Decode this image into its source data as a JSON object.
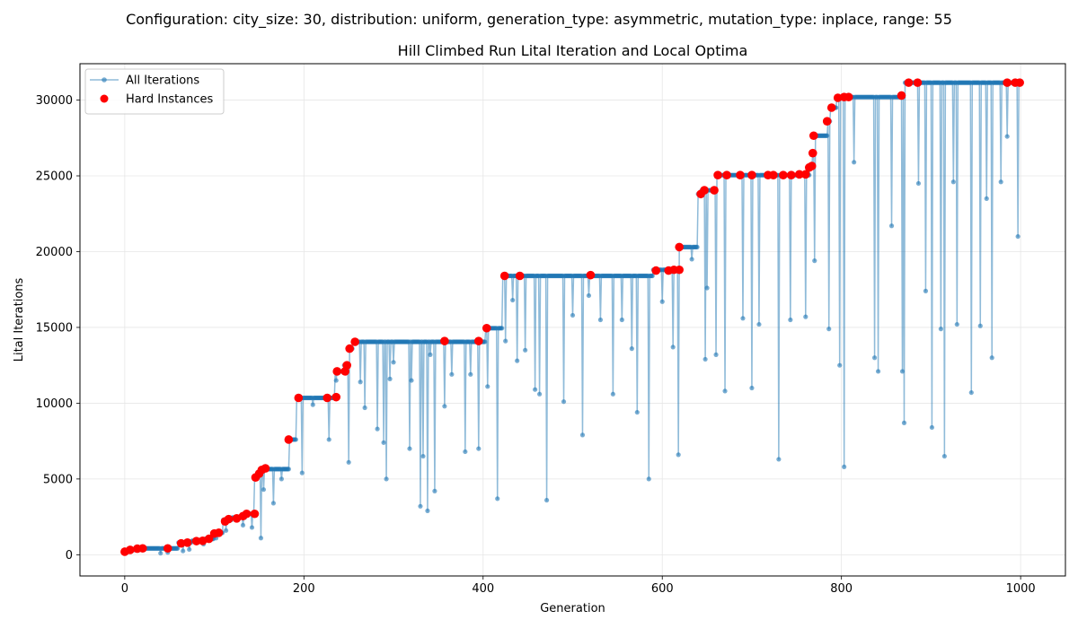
{
  "suptitle": "Configuration: city_size: 30, distribution: uniform, generation_type: asymmetric, mutation_type: inplace, range: 55",
  "chart_data": {
    "type": "line",
    "title": "Hill Climbed Run Lital Iteration and Local Optima",
    "xlabel": "Generation",
    "ylabel": "Lital Iterations",
    "xlim": [
      -50,
      1050
    ],
    "ylim": [
      -1400,
      32400
    ],
    "xticks": [
      0,
      200,
      400,
      600,
      800,
      1000
    ],
    "yticks": [
      0,
      5000,
      10000,
      15000,
      20000,
      25000,
      30000
    ],
    "grid": true,
    "legend_position": "top-left",
    "colors": {
      "all": "#1f77b4",
      "hard": "#ff0000"
    },
    "best_plateaus": [
      {
        "x_start": 0,
        "x_end": 4,
        "value": 200
      },
      {
        "x_start": 5,
        "x_end": 14,
        "value": 320
      },
      {
        "x_start": 15,
        "x_end": 59,
        "value": 420
      },
      {
        "x_start": 60,
        "x_end": 74,
        "value": 800
      },
      {
        "x_start": 75,
        "x_end": 89,
        "value": 920
      },
      {
        "x_start": 90,
        "x_end": 99,
        "value": 1050
      },
      {
        "x_start": 100,
        "x_end": 109,
        "value": 1450
      },
      {
        "x_start": 110,
        "x_end": 119,
        "value": 2300
      },
      {
        "x_start": 120,
        "x_end": 134,
        "value": 2450
      },
      {
        "x_start": 135,
        "x_end": 144,
        "value": 2700
      },
      {
        "x_start": 145,
        "x_end": 147,
        "value": 5100
      },
      {
        "x_start": 148,
        "x_end": 150,
        "value": 5350
      },
      {
        "x_start": 151,
        "x_end": 183,
        "value": 5650
      },
      {
        "x_start": 184,
        "x_end": 191,
        "value": 7600
      },
      {
        "x_start": 192,
        "x_end": 234,
        "value": 10350
      },
      {
        "x_start": 235,
        "x_end": 244,
        "value": 12100
      },
      {
        "x_start": 245,
        "x_end": 249,
        "value": 12500
      },
      {
        "x_start": 250,
        "x_end": 254,
        "value": 13600
      },
      {
        "x_start": 255,
        "x_end": 402,
        "value": 14050
      },
      {
        "x_start": 403,
        "x_end": 421,
        "value": 14950
      },
      {
        "x_start": 422,
        "x_end": 589,
        "value": 18400
      },
      {
        "x_start": 590,
        "x_end": 617,
        "value": 18800
      },
      {
        "x_start": 618,
        "x_end": 639,
        "value": 20300
      },
      {
        "x_start": 640,
        "x_end": 643,
        "value": 23800
      },
      {
        "x_start": 644,
        "x_end": 659,
        "value": 24050
      },
      {
        "x_start": 660,
        "x_end": 764,
        "value": 25050
      },
      {
        "x_start": 765,
        "x_end": 767,
        "value": 25650
      },
      {
        "x_start": 768,
        "x_end": 769,
        "value": 26500
      },
      {
        "x_start": 770,
        "x_end": 784,
        "value": 27650
      },
      {
        "x_start": 785,
        "x_end": 787,
        "value": 28600
      },
      {
        "x_start": 788,
        "x_end": 794,
        "value": 29500
      },
      {
        "x_start": 795,
        "x_end": 869,
        "value": 30200
      },
      {
        "x_start": 870,
        "x_end": 999,
        "value": 31150
      }
    ],
    "dips": [
      [
        40,
        100
      ],
      [
        48,
        150
      ],
      [
        65,
        250
      ],
      [
        72,
        350
      ],
      [
        88,
        700
      ],
      [
        102,
        1100
      ],
      [
        113,
        1600
      ],
      [
        132,
        1950
      ],
      [
        142,
        1800
      ],
      [
        152,
        1100
      ],
      [
        155,
        4300
      ],
      [
        166,
        3400
      ],
      [
        175,
        5000
      ],
      [
        198,
        5400
      ],
      [
        210,
        9900
      ],
      [
        228,
        7600
      ],
      [
        236,
        11500
      ],
      [
        250,
        6100
      ],
      [
        263,
        11400
      ],
      [
        268,
        9700
      ],
      [
        282,
        8300
      ],
      [
        289,
        7400
      ],
      [
        292,
        5000
      ],
      [
        296,
        11600
      ],
      [
        300,
        12700
      ],
      [
        318,
        7000
      ],
      [
        320,
        11500
      ],
      [
        330,
        3200
      ],
      [
        333,
        6500
      ],
      [
        338,
        2900
      ],
      [
        341,
        13200
      ],
      [
        346,
        4200
      ],
      [
        357,
        9800
      ],
      [
        365,
        11900
      ],
      [
        380,
        6800
      ],
      [
        386,
        11900
      ],
      [
        395,
        7000
      ],
      [
        405,
        11100
      ],
      [
        416,
        3700
      ],
      [
        425,
        14100
      ],
      [
        433,
        16800
      ],
      [
        438,
        12800
      ],
      [
        447,
        13500
      ],
      [
        458,
        10900
      ],
      [
        463,
        10600
      ],
      [
        471,
        3600
      ],
      [
        490,
        10100
      ],
      [
        500,
        15800
      ],
      [
        511,
        7900
      ],
      [
        518,
        17100
      ],
      [
        531,
        15500
      ],
      [
        545,
        10600
      ],
      [
        555,
        15500
      ],
      [
        566,
        13600
      ],
      [
        572,
        9400
      ],
      [
        585,
        5000
      ],
      [
        600,
        16700
      ],
      [
        612,
        13700
      ],
      [
        618,
        6600
      ],
      [
        633,
        19500
      ],
      [
        648,
        12900
      ],
      [
        650,
        17600
      ],
      [
        660,
        13200
      ],
      [
        670,
        10800
      ],
      [
        690,
        15600
      ],
      [
        700,
        11000
      ],
      [
        708,
        15200
      ],
      [
        730,
        6300
      ],
      [
        743,
        15500
      ],
      [
        760,
        15700
      ],
      [
        770,
        19400
      ],
      [
        786,
        14900
      ],
      [
        798,
        12500
      ],
      [
        803,
        5800
      ],
      [
        814,
        25900
      ],
      [
        837,
        13000
      ],
      [
        841,
        12100
      ],
      [
        856,
        21700
      ],
      [
        868,
        12100
      ],
      [
        870,
        8700
      ],
      [
        886,
        24500
      ],
      [
        894,
        17400
      ],
      [
        901,
        8400
      ],
      [
        911,
        14900
      ],
      [
        915,
        6500
      ],
      [
        925,
        24600
      ],
      [
        929,
        15200
      ],
      [
        945,
        10700
      ],
      [
        955,
        15100
      ],
      [
        962,
        23500
      ],
      [
        968,
        13000
      ],
      [
        978,
        24600
      ],
      [
        985,
        27600
      ],
      [
        997,
        21000
      ]
    ],
    "hard_points": [
      [
        0,
        200
      ],
      [
        6,
        320
      ],
      [
        14,
        400
      ],
      [
        20,
        420
      ],
      [
        48,
        420
      ],
      [
        63,
        750
      ],
      [
        70,
        800
      ],
      [
        80,
        900
      ],
      [
        87,
        920
      ],
      [
        94,
        1050
      ],
      [
        100,
        1400
      ],
      [
        105,
        1450
      ],
      [
        112,
        2200
      ],
      [
        116,
        2350
      ],
      [
        125,
        2400
      ],
      [
        132,
        2550
      ],
      [
        136,
        2700
      ],
      [
        145,
        2700
      ],
      [
        146,
        5100
      ],
      [
        150,
        5350
      ],
      [
        153,
        5600
      ],
      [
        157,
        5700
      ],
      [
        183,
        7600
      ],
      [
        194,
        10350
      ],
      [
        226,
        10350
      ],
      [
        236,
        10400
      ],
      [
        237,
        12100
      ],
      [
        246,
        12100
      ],
      [
        248,
        12500
      ],
      [
        251,
        13600
      ],
      [
        257,
        14050
      ],
      [
        357,
        14100
      ],
      [
        395,
        14100
      ],
      [
        404,
        14950
      ],
      [
        424,
        18400
      ],
      [
        441,
        18400
      ],
      [
        520,
        18450
      ],
      [
        593,
        18750
      ],
      [
        607,
        18750
      ],
      [
        613,
        18800
      ],
      [
        619,
        18800
      ],
      [
        619,
        20300
      ],
      [
        643,
        23800
      ],
      [
        647,
        24050
      ],
      [
        658,
        24050
      ],
      [
        662,
        25050
      ],
      [
        672,
        25050
      ],
      [
        687,
        25050
      ],
      [
        700,
        25050
      ],
      [
        718,
        25050
      ],
      [
        724,
        25050
      ],
      [
        735,
        25050
      ],
      [
        744,
        25050
      ],
      [
        753,
        25100
      ],
      [
        760,
        25100
      ],
      [
        764,
        25550
      ],
      [
        767,
        25650
      ],
      [
        768,
        26500
      ],
      [
        769,
        27650
      ],
      [
        784,
        28600
      ],
      [
        789,
        29500
      ],
      [
        796,
        30150
      ],
      [
        803,
        30200
      ],
      [
        808,
        30200
      ],
      [
        867,
        30300
      ],
      [
        875,
        31150
      ],
      [
        885,
        31150
      ],
      [
        985,
        31150
      ],
      [
        994,
        31150
      ],
      [
        999,
        31150
      ]
    ],
    "legend": [
      {
        "label": "All Iterations",
        "type": "line-marker"
      },
      {
        "label": "Hard Instances",
        "type": "marker"
      }
    ]
  }
}
